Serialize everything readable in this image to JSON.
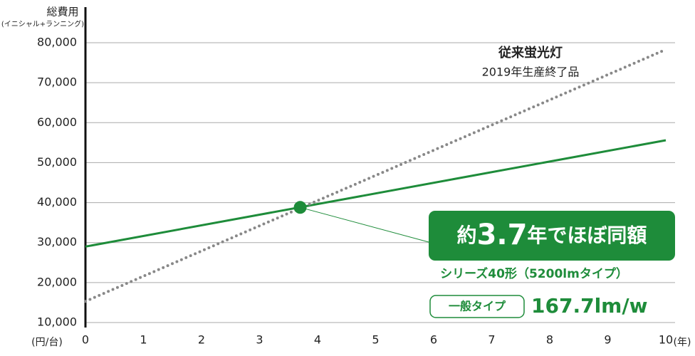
{
  "chart_data": {
    "type": "line",
    "title": "総費用",
    "subtitle": "(イニシャル+ランニング)",
    "y_unit": "(円/台)",
    "x_unit": "(年)",
    "xlim": [
      0,
      10
    ],
    "xticks": [
      0,
      1,
      2,
      3,
      4,
      5,
      6,
      7,
      8,
      9,
      10
    ],
    "ylim": [
      10000,
      80000
    ],
    "yticks": [
      {
        "value": 10000,
        "label": "10,000"
      },
      {
        "value": 20000,
        "label": "20,000"
      },
      {
        "value": 30000,
        "label": "30,000"
      },
      {
        "value": 40000,
        "label": "40,000"
      },
      {
        "value": 50000,
        "label": "50,000"
      },
      {
        "value": 60000,
        "label": "60,000"
      },
      {
        "value": 70000,
        "label": "70,000"
      },
      {
        "value": 80000,
        "label": "80,000"
      }
    ],
    "grid": true,
    "series": [
      {
        "color": "#1e8c3a",
        "style": "solid",
        "x": [
          0,
          10
        ],
        "values": [
          29000,
          55600
        ]
      },
      {
        "color": "#888888",
        "style": "dotted",
        "x": [
          0,
          10
        ],
        "values": [
          15300,
          78300
        ]
      }
    ],
    "intersection": {
      "x": 3.7,
      "y": 38800,
      "color": "#1e8c3a"
    },
    "annotations": {
      "old_name": "従来蛍光灯",
      "old_note": "2019年生産終了品",
      "callout": [
        "約",
        "3.7",
        "年でほぼ同額"
      ],
      "series_name": "シリーズ40形（5200lmタイプ）",
      "type_label": "一般タイプ",
      "efficiency": "167.7lm/w"
    }
  }
}
